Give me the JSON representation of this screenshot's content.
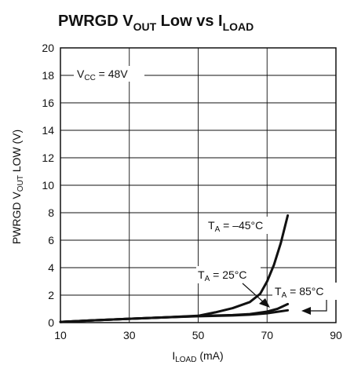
{
  "chart_data": {
    "type": "line",
    "title": {
      "pre": "PWRGD V",
      "sub1": "OUT",
      "mid": " Low vs I",
      "sub2": "LOAD"
    },
    "xlabel": {
      "main": "I",
      "sub": "LOAD",
      "post": " (mA)"
    },
    "ylabel": {
      "pre": "PWRGD V",
      "sub": "OUT",
      "post": " LOW (V)"
    },
    "xlim": [
      10,
      90
    ],
    "ylim": [
      0,
      20
    ],
    "x_ticks": [
      10,
      30,
      50,
      70,
      90
    ],
    "y_ticks": [
      0,
      2,
      4,
      6,
      8,
      10,
      12,
      14,
      16,
      18,
      20
    ],
    "grid": true,
    "conditions": {
      "pre": "V",
      "sub": "CC",
      "post": " = 48V"
    },
    "series": [
      {
        "name": "T_A = -45°C",
        "label": {
          "pre": "T",
          "sub": "A",
          "post": " = –45°C"
        },
        "x": [
          10,
          20,
          30,
          40,
          50,
          55,
          60,
          65,
          68,
          70,
          72,
          74,
          76
        ],
        "y": [
          0.05,
          0.17,
          0.28,
          0.38,
          0.5,
          0.75,
          1.05,
          1.5,
          2.1,
          3.0,
          4.2,
          5.8,
          7.8
        ]
      },
      {
        "name": "T_A = 25°C",
        "label": {
          "pre": "T",
          "sub": "A",
          "post": " = 25°C"
        },
        "x": [
          10,
          20,
          30,
          40,
          50,
          60,
          65,
          70,
          73,
          76
        ],
        "y": [
          0.05,
          0.17,
          0.28,
          0.38,
          0.48,
          0.55,
          0.62,
          0.8,
          1.0,
          1.35
        ]
      },
      {
        "name": "T_A = 85°C",
        "label": {
          "pre": "T",
          "sub": "A",
          "post": " = 85°C"
        },
        "x": [
          10,
          20,
          30,
          40,
          50,
          60,
          65,
          70,
          76
        ],
        "y": [
          0.05,
          0.17,
          0.28,
          0.38,
          0.46,
          0.52,
          0.58,
          0.68,
          0.9
        ]
      }
    ]
  }
}
